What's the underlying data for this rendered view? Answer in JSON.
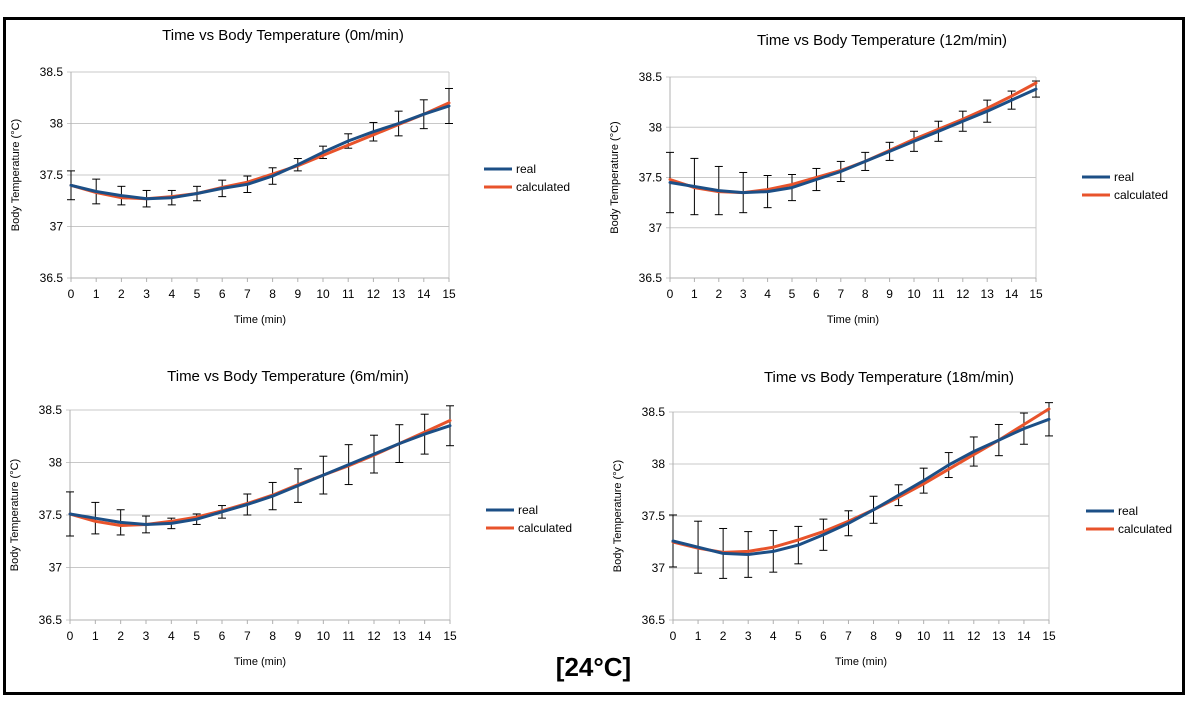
{
  "footer": "[24°C]",
  "chart_data": [
    {
      "type": "line",
      "title": "Time vs Body Temperature (0m/min)",
      "xlabel": "Time (min)",
      "ylabel": "Body Temperature (°C)",
      "ylim": [
        36.5,
        38.5
      ],
      "y_ticks": [
        36.5,
        37,
        37.5,
        38,
        38.5
      ],
      "y_tick_labels": [
        "36.5",
        "37",
        "37.5",
        "38",
        "38.5"
      ],
      "grid": true,
      "legend": "right",
      "x": [
        0,
        1,
        2,
        3,
        4,
        5,
        6,
        7,
        8,
        9,
        10,
        11,
        12,
        13,
        14,
        15
      ],
      "series": [
        {
          "name": "real",
          "color": "#1c4f86",
          "values": [
            37.4,
            37.34,
            37.3,
            37.27,
            37.28,
            37.32,
            37.37,
            37.41,
            37.49,
            37.6,
            37.72,
            37.83,
            37.92,
            38.0,
            38.09,
            38.17
          ],
          "err": [
            0.14,
            0.12,
            0.09,
            0.08,
            0.07,
            0.07,
            0.08,
            0.08,
            0.08,
            0.06,
            0.06,
            0.07,
            0.09,
            0.12,
            0.14,
            0.17
          ]
        },
        {
          "name": "calculated",
          "color": "#e8532b",
          "values": [
            37.4,
            37.33,
            37.28,
            37.27,
            37.29,
            37.32,
            37.38,
            37.43,
            37.51,
            37.59,
            37.69,
            37.79,
            37.89,
            37.99,
            38.09,
            38.2
          ]
        }
      ]
    },
    {
      "type": "line",
      "title": "Time vs Body Temperature (12m/min)",
      "xlabel": "Time (min)",
      "ylabel": "Body Temperature (°C)",
      "ylim": [
        36.5,
        38.5
      ],
      "y_ticks": [
        36.5,
        37,
        37.5,
        38,
        38.5
      ],
      "y_tick_labels": [
        "36.5",
        "37",
        "37.5",
        "38",
        "38.5"
      ],
      "grid": true,
      "legend": "right",
      "x": [
        0,
        1,
        2,
        3,
        4,
        5,
        6,
        7,
        8,
        9,
        10,
        11,
        12,
        13,
        14,
        15
      ],
      "series": [
        {
          "name": "real",
          "color": "#1c4f86",
          "values": [
            37.45,
            37.41,
            37.37,
            37.35,
            37.36,
            37.4,
            37.48,
            37.56,
            37.66,
            37.76,
            37.86,
            37.96,
            38.06,
            38.16,
            38.27,
            38.38
          ],
          "err": [
            0.3,
            0.28,
            0.24,
            0.2,
            0.16,
            0.13,
            0.11,
            0.1,
            0.09,
            0.09,
            0.1,
            0.1,
            0.1,
            0.11,
            0.09,
            0.08
          ]
        },
        {
          "name": "calculated",
          "color": "#e8532b",
          "values": [
            37.48,
            37.4,
            37.36,
            37.35,
            37.38,
            37.43,
            37.5,
            37.57,
            37.66,
            37.77,
            37.88,
            37.98,
            38.08,
            38.19,
            38.31,
            38.44
          ]
        }
      ]
    },
    {
      "type": "line",
      "title": "Time vs Body Temperature (6m/min)",
      "xlabel": "Time (min)",
      "ylabel": "Body Temperature (°C)",
      "ylim": [
        36.5,
        38.5
      ],
      "y_ticks": [
        36.5,
        37,
        37.5,
        38,
        38.5
      ],
      "y_tick_labels": [
        "36.5",
        "37",
        "37.5",
        "38",
        "38.5"
      ],
      "grid": true,
      "legend": "right",
      "x": [
        0,
        1,
        2,
        3,
        4,
        5,
        6,
        7,
        8,
        9,
        10,
        11,
        12,
        13,
        14,
        15
      ],
      "series": [
        {
          "name": "real",
          "color": "#1c4f86",
          "values": [
            37.51,
            37.47,
            37.43,
            37.41,
            37.42,
            37.46,
            37.53,
            37.6,
            37.68,
            37.78,
            37.88,
            37.98,
            38.08,
            38.18,
            38.27,
            38.35
          ],
          "err": [
            0.21,
            0.15,
            0.12,
            0.08,
            0.05,
            0.05,
            0.06,
            0.1,
            0.13,
            0.16,
            0.18,
            0.19,
            0.18,
            0.18,
            0.19,
            0.19
          ]
        },
        {
          "name": "calculated",
          "color": "#e8532b",
          "values": [
            37.51,
            37.44,
            37.4,
            37.41,
            37.44,
            37.48,
            37.54,
            37.61,
            37.69,
            37.79,
            37.88,
            37.97,
            38.07,
            38.18,
            38.29,
            38.4
          ]
        }
      ]
    },
    {
      "type": "line",
      "title": "Time vs Body Temperature (18m/min)",
      "xlabel": "Time (min)",
      "ylabel": "Body Temperature (°C)",
      "ylim": [
        36.5,
        38.5
      ],
      "y_ticks": [
        36.5,
        37,
        37.5,
        38,
        38.5
      ],
      "y_tick_labels": [
        "36.5",
        "37",
        "37.5",
        "38",
        "38.5"
      ],
      "grid": true,
      "legend": "right",
      "x": [
        0,
        1,
        2,
        3,
        4,
        5,
        6,
        7,
        8,
        9,
        10,
        11,
        12,
        13,
        14,
        15
      ],
      "series": [
        {
          "name": "real",
          "color": "#1c4f86",
          "values": [
            37.26,
            37.2,
            37.14,
            37.13,
            37.16,
            37.22,
            37.32,
            37.43,
            37.56,
            37.7,
            37.84,
            37.99,
            38.12,
            38.23,
            38.34,
            38.43
          ],
          "err": [
            0.25,
            0.25,
            0.24,
            0.22,
            0.2,
            0.18,
            0.15,
            0.12,
            0.13,
            0.1,
            0.12,
            0.12,
            0.14,
            0.15,
            0.15,
            0.16
          ]
        },
        {
          "name": "calculated",
          "color": "#e8532b",
          "values": [
            37.25,
            37.19,
            37.15,
            37.16,
            37.2,
            37.27,
            37.35,
            37.45,
            37.56,
            37.68,
            37.81,
            37.95,
            38.09,
            38.23,
            38.38,
            38.53
          ]
        }
      ]
    }
  ]
}
